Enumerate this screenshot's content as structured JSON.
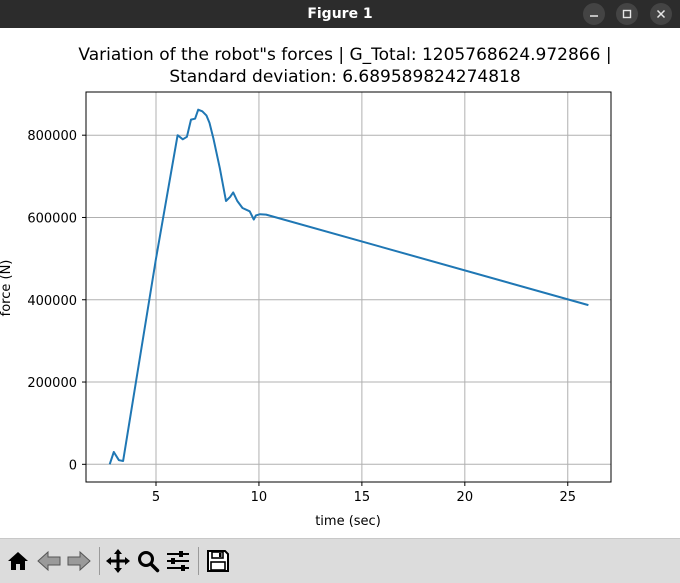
{
  "window": {
    "title": "Figure 1",
    "minimize_icon": "minimize-icon",
    "maximize_icon": "maximize-icon",
    "close_icon": "close-icon"
  },
  "toolbar": {
    "buttons": [
      {
        "name": "home-button",
        "icon": "home-icon"
      },
      {
        "name": "back-button",
        "icon": "arrow-left-icon"
      },
      {
        "name": "forward-button",
        "icon": "arrow-right-icon"
      },
      {
        "name": "pan-button",
        "icon": "move-icon"
      },
      {
        "name": "zoom-button",
        "icon": "magnifier-icon"
      },
      {
        "name": "subplots-button",
        "icon": "sliders-icon"
      },
      {
        "name": "save-button",
        "icon": "floppy-disk-icon"
      }
    ]
  },
  "chart_data": {
    "type": "line",
    "title_lines": [
      "Variation of the robot\"s forces | G_Total: 1205768624.972866 |",
      "Standard deviation: 6.689589824274818"
    ],
    "xlabel": "time (sec)",
    "ylabel": "force (N)",
    "xlim": [
      1.6,
      27.1
    ],
    "ylim": [
      -43000,
      905000
    ],
    "xticks": [
      5,
      10,
      15,
      20,
      25
    ],
    "yticks": [
      0,
      200000,
      400000,
      600000,
      800000
    ],
    "xtick_labels": [
      "5",
      "10",
      "15",
      "20",
      "25"
    ],
    "ytick_labels": [
      "0",
      "200000",
      "400000",
      "600000",
      "800000"
    ],
    "grid": true,
    "line_color": "#1f77b4",
    "series": [
      {
        "x": [
          2.75,
          2.95,
          3.2,
          3.4,
          5.0,
          6.05,
          6.3,
          6.5,
          6.7,
          6.9,
          7.05,
          7.25,
          7.45,
          7.6,
          7.8,
          8.1,
          8.4,
          8.6,
          8.75,
          8.95,
          9.2,
          9.55,
          9.75,
          9.85,
          10.05,
          10.35,
          26.0
        ],
        "y": [
          0,
          30000,
          10000,
          8000,
          500000,
          800000,
          790000,
          796000,
          838000,
          840000,
          862000,
          858000,
          848000,
          830000,
          790000,
          720000,
          640000,
          650000,
          661000,
          640000,
          623000,
          615000,
          595000,
          605000,
          608000,
          607000,
          387000
        ]
      }
    ]
  }
}
